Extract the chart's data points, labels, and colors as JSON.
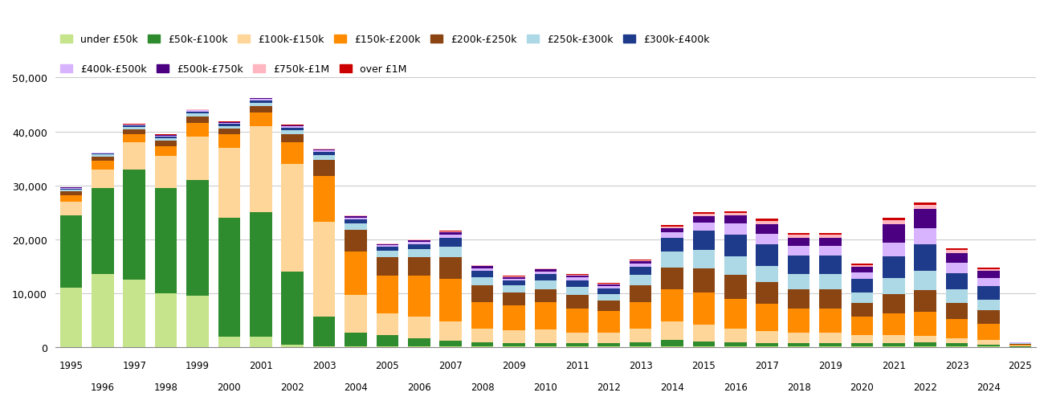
{
  "years": [
    1995,
    1996,
    1997,
    1998,
    1999,
    2000,
    2001,
    2002,
    2003,
    2004,
    2005,
    2006,
    2007,
    2008,
    2009,
    2010,
    2011,
    2012,
    2013,
    2014,
    2015,
    2016,
    2017,
    2018,
    2019,
    2020,
    2021,
    2022,
    2023,
    2024,
    2025
  ],
  "categories": [
    "under £50k",
    "£50k-£100k",
    "£100k-£150k",
    "£150k-£200k",
    "£200k-£250k",
    "£250k-£300k",
    "£300k-£400k",
    "£400k-£500k",
    "£500k-£750k",
    "£750k-£1M",
    "over £1M"
  ],
  "colors": [
    "#c6e48b",
    "#2e8b2e",
    "#ffd699",
    "#ff8c00",
    "#8b4513",
    "#add8e6",
    "#1e3a8a",
    "#d8b4fe",
    "#4b0082",
    "#ffb6c1",
    "#cc0000"
  ],
  "data": {
    "under £50k": [
      11000,
      13500,
      12500,
      10000,
      9500,
      2000,
      2000,
      500,
      200,
      200,
      200,
      200,
      200,
      200,
      100,
      100,
      100,
      100,
      100,
      100,
      100,
      100,
      100,
      100,
      100,
      100,
      100,
      100,
      100,
      100,
      50
    ],
    "£50k-£100k": [
      13500,
      16000,
      20500,
      19500,
      21500,
      22000,
      23000,
      13500,
      5500,
      2500,
      2000,
      1500,
      1000,
      700,
      600,
      700,
      600,
      600,
      800,
      1200,
      1000,
      800,
      700,
      600,
      600,
      600,
      700,
      800,
      600,
      400,
      100
    ],
    "£100k-£150k": [
      2500,
      3500,
      5000,
      6000,
      8000,
      13000,
      16000,
      20000,
      17500,
      7000,
      4000,
      4000,
      3500,
      2500,
      2500,
      2500,
      2000,
      2000,
      2500,
      3500,
      3000,
      2500,
      2200,
      2000,
      2000,
      1500,
      1500,
      1200,
      1000,
      800,
      100
    ],
    "£150k-£200k": [
      1200,
      1500,
      1500,
      1800,
      2500,
      2500,
      2500,
      4000,
      8500,
      8000,
      7000,
      7500,
      8000,
      5000,
      4500,
      5000,
      4500,
      4000,
      5000,
      6000,
      6000,
      5500,
      5000,
      4500,
      4500,
      3500,
      4000,
      4500,
      3500,
      3000,
      200
    ],
    "£200k-£250k": [
      700,
      800,
      900,
      1000,
      1200,
      1000,
      1200,
      1500,
      3000,
      4000,
      3500,
      3500,
      4000,
      3000,
      2500,
      2500,
      2500,
      2000,
      3000,
      4000,
      4500,
      4500,
      4000,
      3500,
      3500,
      2500,
      3500,
      4000,
      3000,
      2500,
      150
    ],
    "£250k-£300k": [
      300,
      400,
      400,
      500,
      600,
      500,
      600,
      700,
      900,
      1200,
      1200,
      1500,
      2000,
      1500,
      1200,
      1500,
      1500,
      1200,
      2000,
      3000,
      3500,
      3500,
      3000,
      2800,
      2800,
      2000,
      3000,
      3500,
      2500,
      2000,
      100
    ],
    "£300k-£400k": [
      200,
      200,
      300,
      300,
      400,
      400,
      500,
      500,
      600,
      800,
      700,
      900,
      1500,
      1200,
      900,
      1200,
      1200,
      1000,
      1500,
      2500,
      3500,
      4000,
      4000,
      3500,
      3500,
      2500,
      4000,
      5000,
      3000,
      2500,
      100
    ],
    "£400k-£500k": [
      100,
      100,
      100,
      150,
      200,
      200,
      200,
      250,
      300,
      350,
      300,
      400,
      600,
      500,
      400,
      500,
      500,
      400,
      600,
      1000,
      1500,
      2000,
      2000,
      1800,
      1800,
      1200,
      2500,
      3000,
      2000,
      1500,
      50
    ],
    "£500k-£750k": [
      80,
      80,
      100,
      100,
      120,
      120,
      150,
      150,
      200,
      250,
      200,
      300,
      500,
      400,
      300,
      400,
      400,
      350,
      500,
      800,
      1200,
      1500,
      1800,
      1500,
      1500,
      1000,
      3500,
      3500,
      1800,
      1300,
      50
    ],
    "£750k-£1M": [
      30,
      30,
      40,
      40,
      50,
      50,
      60,
      60,
      80,
      100,
      80,
      100,
      200,
      150,
      120,
      150,
      150,
      120,
      150,
      300,
      400,
      500,
      600,
      500,
      500,
      350,
      700,
      700,
      500,
      400,
      30
    ],
    "over £1M": [
      20,
      20,
      30,
      30,
      40,
      40,
      50,
      50,
      60,
      80,
      70,
      80,
      150,
      120,
      100,
      120,
      120,
      100,
      120,
      200,
      300,
      350,
      400,
      350,
      350,
      250,
      500,
      500,
      350,
      280,
      20
    ]
  }
}
